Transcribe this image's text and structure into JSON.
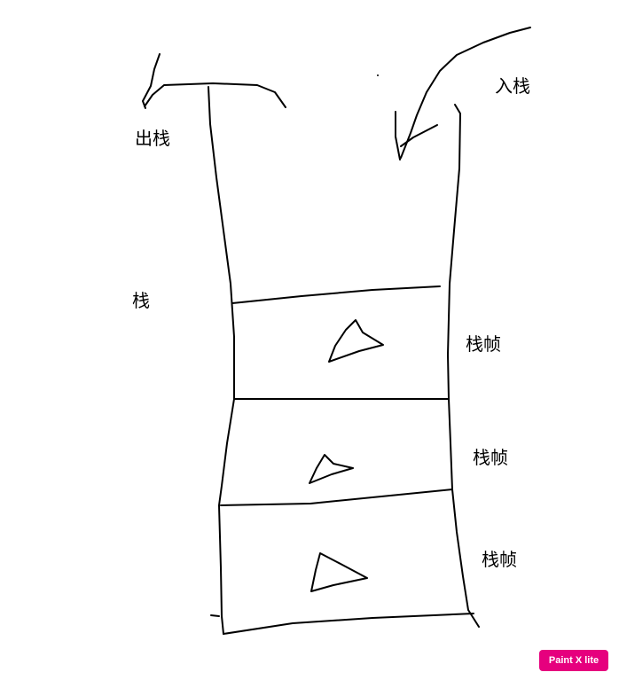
{
  "labels": {
    "pop": "出栈",
    "push": "入栈",
    "stack": "栈",
    "frames": [
      "栈帧",
      "栈帧",
      "栈帧"
    ]
  },
  "watermark": "Paint X lite",
  "colors": {
    "ink": "#000000",
    "background": "#ffffff",
    "watermark_bg": "#e6007e"
  }
}
